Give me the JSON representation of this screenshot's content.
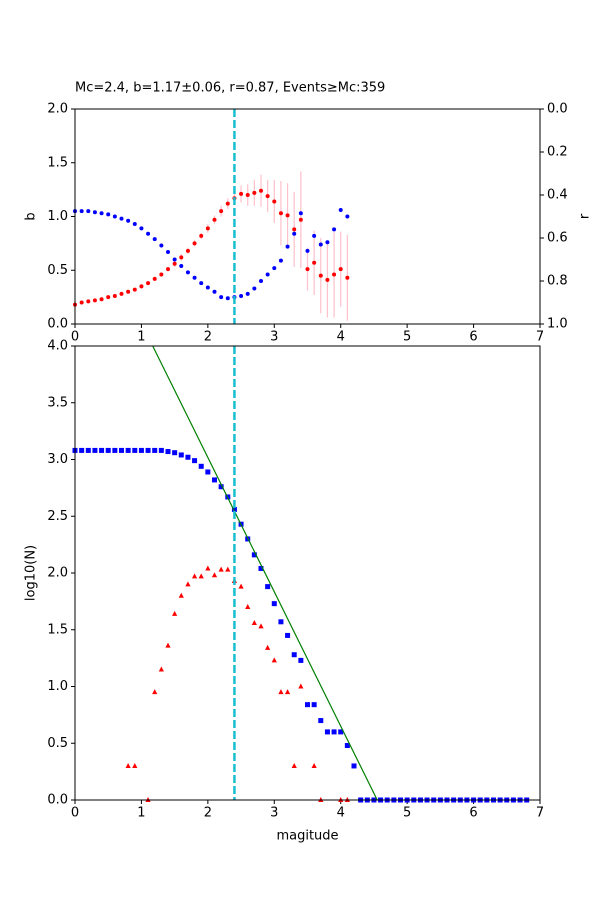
{
  "chart_data": [
    {
      "type": "scatter",
      "title": "Mc=2.4, b=1.17±0.06, r=0.87, Events≥Mc:359",
      "ylabel": "b",
      "y2label": "r",
      "xlim": [
        0,
        7
      ],
      "xticks": [
        0,
        1,
        2,
        3,
        4,
        5,
        6,
        7
      ],
      "ylim": [
        0,
        2
      ],
      "yticks": [
        {
          "value": 0,
          "label": "0.0"
        },
        {
          "value": 0.5,
          "label": "0.5"
        },
        {
          "value": 1,
          "label": "1.0"
        },
        {
          "value": 1.5,
          "label": "1.5"
        },
        {
          "value": 2,
          "label": "2.0"
        }
      ],
      "y2lim": [
        1,
        0
      ],
      "y2ticks": [
        {
          "value": 0,
          "label": "0.0"
        },
        {
          "value": 0.2,
          "label": "0.2"
        },
        {
          "value": 0.4,
          "label": "0.4"
        },
        {
          "value": 0.6,
          "label": "0.6"
        },
        {
          "value": 0.8,
          "label": "0.8"
        },
        {
          "value": 1,
          "label": "1.0"
        }
      ],
      "vline": 2.4,
      "vline_color": "#17becf",
      "series": [
        {
          "color": "#ff0000",
          "marker": "circle",
          "axis": "y",
          "errors_color": "#ffc0cb",
          "x": [
            0,
            0.1,
            0.2,
            0.3,
            0.4,
            0.5,
            0.6,
            0.7,
            0.8,
            0.9,
            1.0,
            1.1,
            1.2,
            1.3,
            1.4,
            1.5,
            1.6,
            1.7,
            1.8,
            1.9,
            2.0,
            2.1,
            2.2,
            2.3,
            2.4,
            2.5,
            2.6,
            2.7,
            2.8,
            2.9,
            3.0,
            3.1,
            3.2,
            3.3,
            3.4,
            3.5,
            3.6,
            3.7,
            3.8,
            3.9,
            4.0,
            4.1
          ],
          "values": [
            0.18,
            0.2,
            0.21,
            0.22,
            0.23,
            0.25,
            0.26,
            0.28,
            0.3,
            0.32,
            0.35,
            0.38,
            0.42,
            0.46,
            0.51,
            0.56,
            0.62,
            0.68,
            0.75,
            0.82,
            0.89,
            0.97,
            1.05,
            1.12,
            1.17,
            1.21,
            1.2,
            1.22,
            1.24,
            1.19,
            1.14,
            1.03,
            1.01,
            0.88,
            0.97,
            0.51,
            0.57,
            0.45,
            0.41,
            0.46,
            0.51,
            0.43
          ],
          "errors": [
            0.01,
            0.01,
            0.01,
            0.01,
            0.01,
            0.01,
            0.01,
            0.01,
            0.01,
            0.01,
            0.02,
            0.02,
            0.02,
            0.02,
            0.02,
            0.03,
            0.03,
            0.03,
            0.03,
            0.03,
            0.04,
            0.04,
            0.05,
            0.05,
            0.06,
            0.08,
            0.1,
            0.12,
            0.15,
            0.15,
            0.2,
            0.3,
            0.3,
            0.35,
            0.45,
            0.2,
            0.3,
            0.35,
            0.35,
            0.4,
            0.35,
            0.4
          ]
        },
        {
          "color": "#0000ff",
          "marker": "circle",
          "axis": "y2",
          "x": [
            0,
            0.1,
            0.2,
            0.3,
            0.4,
            0.5,
            0.6,
            0.7,
            0.8,
            0.9,
            1.0,
            1.1,
            1.2,
            1.3,
            1.4,
            1.5,
            1.6,
            1.7,
            1.8,
            1.9,
            2.0,
            2.1,
            2.2,
            2.3,
            2.4,
            2.5,
            2.6,
            2.7,
            2.8,
            2.9,
            3.0,
            3.1,
            3.2,
            3.3,
            3.4,
            3.5,
            3.6,
            3.7,
            3.8,
            3.9,
            4.0,
            4.1
          ],
          "values": [
            0.475,
            0.475,
            0.475,
            0.48,
            0.485,
            0.49,
            0.5,
            0.51,
            0.52,
            0.535,
            0.555,
            0.58,
            0.605,
            0.635,
            0.665,
            0.7,
            0.73,
            0.76,
            0.785,
            0.81,
            0.83,
            0.85,
            0.875,
            0.88,
            0.875,
            0.87,
            0.86,
            0.835,
            0.8,
            0.77,
            0.74,
            0.705,
            0.64,
            0.58,
            0.485,
            0.66,
            0.59,
            0.63,
            0.62,
            0.56,
            0.47,
            0.5
          ]
        }
      ]
    },
    {
      "type": "scatter",
      "xlabel": "magitude",
      "ylabel": "log10(N)",
      "xlim": [
        0,
        7
      ],
      "xticks": [
        0,
        1,
        2,
        3,
        4,
        5,
        6,
        7
      ],
      "ylim": [
        0,
        4
      ],
      "yticks": [
        {
          "value": 0,
          "label": "0.0"
        },
        {
          "value": 0.5,
          "label": "0.5"
        },
        {
          "value": 1,
          "label": "1.0"
        },
        {
          "value": 1.5,
          "label": "1.5"
        },
        {
          "value": 2,
          "label": "2.0"
        },
        {
          "value": 2.5,
          "label": "2.5"
        },
        {
          "value": 3,
          "label": "3.0"
        },
        {
          "value": 3.5,
          "label": "3.5"
        },
        {
          "value": 4,
          "label": "4.0"
        }
      ],
      "vline": 2.4,
      "vline_color": "#17becf",
      "fit_line": {
        "color": "#008000",
        "x": [
          1.17,
          4.55
        ],
        "y": [
          4.0,
          0.0
        ]
      },
      "series": [
        {
          "color": "#0000ff",
          "marker": "square",
          "axis": "y",
          "x": [
            0,
            0.1,
            0.2,
            0.3,
            0.4,
            0.5,
            0.6,
            0.7,
            0.8,
            0.9,
            1.0,
            1.1,
            1.2,
            1.3,
            1.4,
            1.5,
            1.6,
            1.7,
            1.8,
            1.9,
            2.0,
            2.1,
            2.2,
            2.3,
            2.4,
            2.5,
            2.6,
            2.7,
            2.8,
            2.9,
            3.0,
            3.1,
            3.2,
            3.3,
            3.4,
            3.5,
            3.6,
            3.7,
            3.8,
            3.9,
            4.0,
            4.1,
            4.2,
            4.3,
            4.4,
            4.5,
            4.6,
            4.7,
            4.8,
            4.9,
            5.0,
            5.1,
            5.2,
            5.3,
            5.4,
            5.5,
            5.6,
            5.7,
            5.8,
            5.9,
            6.0,
            6.1,
            6.2,
            6.3,
            6.4,
            6.5,
            6.6,
            6.7,
            6.8
          ],
          "values": [
            3.08,
            3.08,
            3.08,
            3.08,
            3.08,
            3.08,
            3.08,
            3.08,
            3.08,
            3.08,
            3.08,
            3.08,
            3.08,
            3.08,
            3.07,
            3.06,
            3.04,
            3.02,
            2.99,
            2.94,
            2.89,
            2.82,
            2.76,
            2.67,
            2.56,
            2.43,
            2.3,
            2.16,
            2.04,
            1.88,
            1.73,
            1.57,
            1.45,
            1.28,
            1.23,
            0.84,
            0.84,
            0.7,
            0.6,
            0.6,
            0.6,
            0.48,
            0.3,
            0,
            0,
            0,
            0,
            0,
            0,
            0,
            0,
            0,
            0,
            0,
            0,
            0,
            0,
            0,
            0,
            0,
            0,
            0,
            0,
            0,
            0,
            0,
            0,
            0,
            0
          ]
        },
        {
          "color": "#ff0000",
          "marker": "triangle",
          "axis": "y",
          "x": [
            0.8,
            0.9,
            1.1,
            1.2,
            1.3,
            1.4,
            1.5,
            1.6,
            1.7,
            1.8,
            1.9,
            2.0,
            2.1,
            2.2,
            2.3,
            2.4,
            2.5,
            2.6,
            2.7,
            2.8,
            2.9,
            3.0,
            3.1,
            3.2,
            3.3,
            3.4,
            3.6,
            3.7,
            4.0,
            4.1
          ],
          "values": [
            0.3,
            0.3,
            0,
            0.95,
            1.15,
            1.36,
            1.64,
            1.8,
            1.9,
            1.97,
            1.97,
            2.04,
            1.98,
            2.03,
            2.03,
            1.93,
            1.88,
            1.7,
            1.56,
            1.53,
            1.34,
            1.23,
            0.95,
            0.95,
            0.3,
            1.0,
            0.3,
            0,
            0,
            0
          ]
        }
      ]
    }
  ]
}
